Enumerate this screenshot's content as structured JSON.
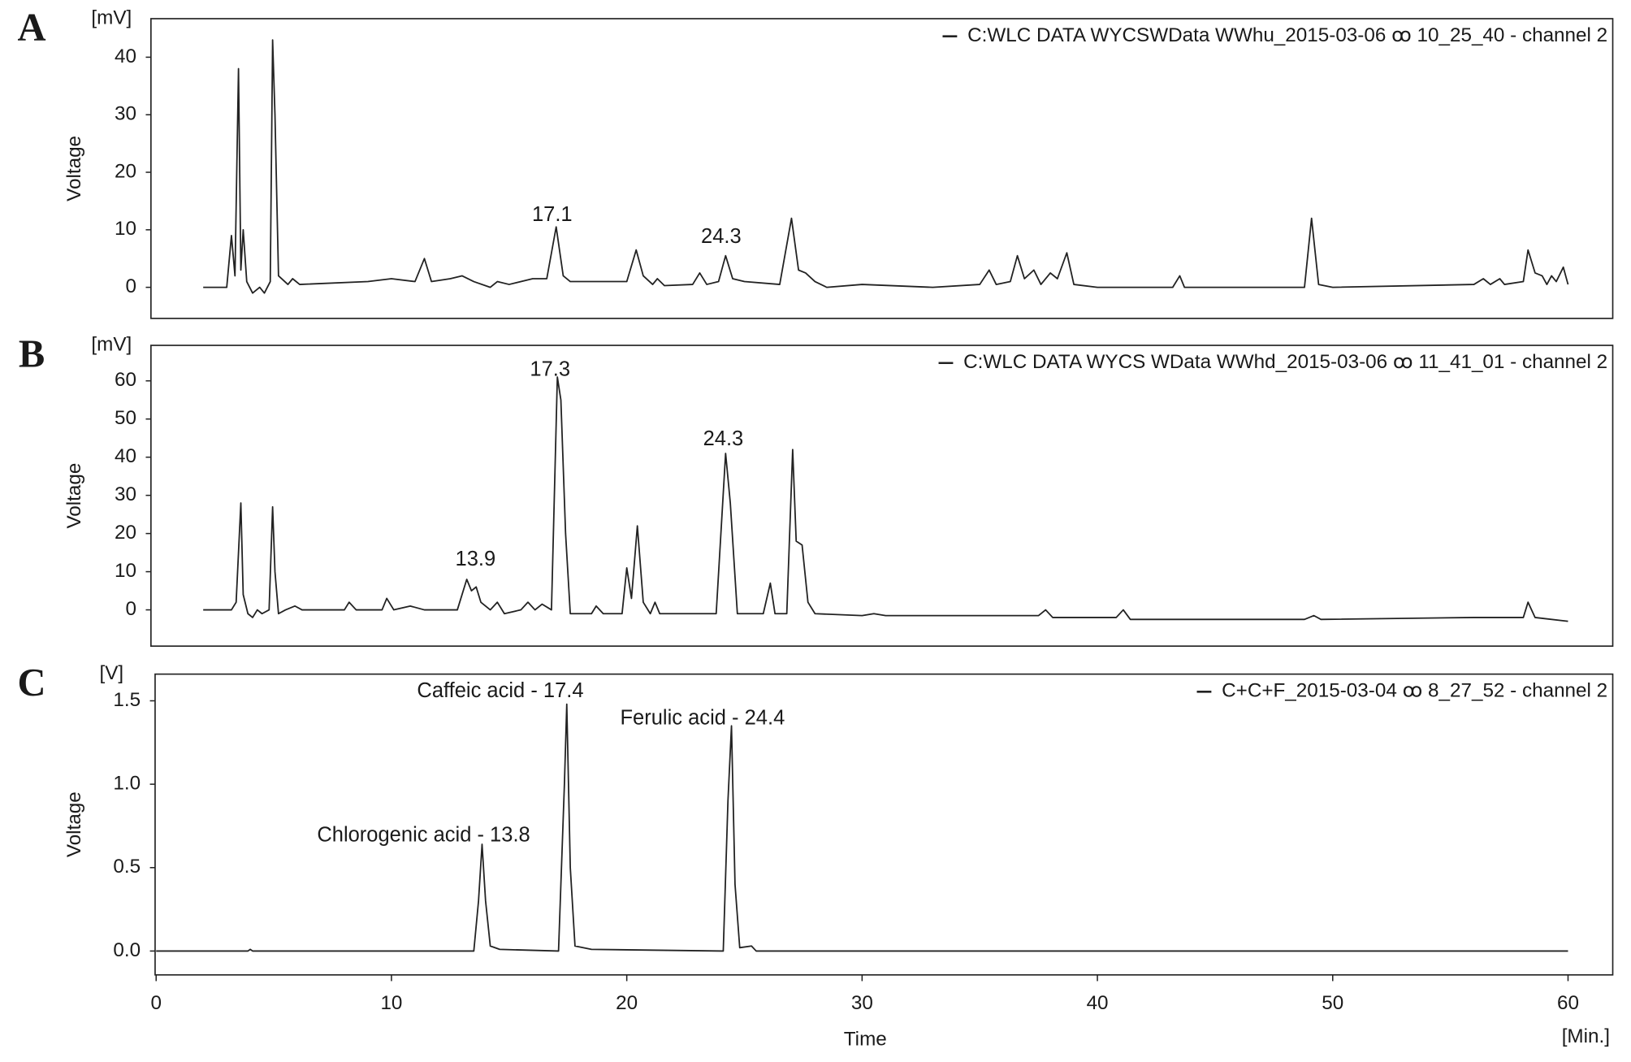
{
  "chart_data": [
    {
      "type": "line",
      "panel_label": "A",
      "y_unit": "[mV]",
      "y_label": "Voltage",
      "xlim": [
        0,
        61.9
      ],
      "ylim": [
        -5.4,
        46.7
      ],
      "yticks": [
        0,
        10,
        20,
        30,
        40
      ],
      "annotations": [
        "17.1",
        "24.3"
      ],
      "x": [
        2.0,
        3.0,
        3.2,
        3.35,
        3.5,
        3.6,
        3.7,
        3.85,
        4.1,
        4.4,
        4.6,
        4.85,
        4.95,
        5.05,
        5.2,
        5.6,
        5.8,
        6.1,
        9,
        10,
        11,
        11.4,
        11.7,
        12.5,
        13,
        13.5,
        14.2,
        14.5,
        15,
        16,
        16.6,
        17.0,
        17.3,
        17.6,
        20,
        20.4,
        20.7,
        21.1,
        21.3,
        21.6,
        22.8,
        23.1,
        23.4,
        23.9,
        24.2,
        24.5,
        25,
        26.5,
        27.0,
        27.3,
        27.6,
        28,
        28.5,
        30,
        33,
        35,
        35.4,
        35.7,
        36.3,
        36.6,
        36.9,
        37.3,
        37.6,
        38,
        38.3,
        38.7,
        39,
        40,
        42,
        43.2,
        43.5,
        43.7,
        46,
        48.8,
        49.1,
        49.4,
        50,
        56,
        56.4,
        56.7,
        57.1,
        57.3,
        58.1,
        58.3,
        58.6,
        58.9,
        59.1,
        59.3,
        59.5,
        59.8,
        60
      ],
      "series": [
        {
          "name": "C:WLC DATA WYCSWData WWhu_2015-03-06 ꝏ 10_25_40 - channel 2",
          "color": "#222222",
          "values": [
            0,
            0,
            9,
            2,
            38,
            3,
            10,
            1,
            -1,
            0,
            -1,
            1,
            43,
            30,
            2,
            0.5,
            1.5,
            0.5,
            1,
            1.5,
            1,
            5,
            1,
            1.5,
            2,
            1,
            0,
            1,
            0.5,
            1.5,
            1.5,
            10.5,
            2,
            1,
            1,
            6.5,
            2,
            0.5,
            1.5,
            0.3,
            0.5,
            2.5,
            0.5,
            1,
            5.5,
            1.5,
            1,
            0.5,
            12,
            3,
            2.5,
            1,
            0,
            0.5,
            0,
            0.5,
            3,
            0.5,
            1,
            5.5,
            1.5,
            3,
            0.5,
            2.5,
            1.5,
            6,
            0.5,
            0,
            0,
            0,
            2,
            0,
            0,
            0,
            12,
            0.5,
            0,
            0.5,
            1.5,
            0.5,
            1.5,
            0.5,
            1,
            6.5,
            2.5,
            2,
            0.5,
            2,
            1,
            3.5,
            0.5
          ]
        }
      ]
    },
    {
      "type": "line",
      "panel_label": "B",
      "y_unit": "[mV]",
      "y_label": "Voltage",
      "xlim": [
        0,
        61.9
      ],
      "ylim": [
        -9.5,
        69.3
      ],
      "yticks": [
        0,
        10,
        20,
        30,
        40,
        50,
        60
      ],
      "annotations": [
        "17.3",
        "24.3",
        "13.9"
      ],
      "x": [
        2,
        3.2,
        3.4,
        3.6,
        3.7,
        3.9,
        4.1,
        4.3,
        4.5,
        4.8,
        4.95,
        5.05,
        5.2,
        5.5,
        5.9,
        6.2,
        8,
        8.2,
        8.5,
        9.6,
        9.8,
        10.1,
        10.8,
        11.4,
        12.8,
        13.2,
        13.4,
        13.6,
        13.8,
        14.2,
        14.5,
        14.8,
        15.5,
        15.8,
        16.1,
        16.4,
        16.8,
        17.05,
        17.2,
        17.4,
        17.6,
        18.5,
        18.7,
        19,
        19.8,
        20.0,
        20.2,
        20.45,
        20.7,
        21,
        21.2,
        21.4,
        23.8,
        24.2,
        24.4,
        24.7,
        25.8,
        26.1,
        26.3,
        26.8,
        27.05,
        27.2,
        27.45,
        27.7,
        28,
        30,
        30.5,
        31,
        37.5,
        37.8,
        38.1,
        40.8,
        41.1,
        41.4,
        48.8,
        49.2,
        49.5,
        56,
        58.1,
        58.3,
        58.6,
        60
      ],
      "series": [
        {
          "name": "C:WLC DATA WYCS WData WWhd_2015-03-06 ꝏ 11_41_01 - channel 2",
          "color": "#222222",
          "values": [
            0,
            0,
            2,
            28,
            4,
            -1,
            -2,
            0,
            -1,
            0,
            27,
            10,
            -1,
            0,
            1,
            0,
            0,
            2,
            0,
            0,
            3,
            0,
            1,
            0,
            0,
            8,
            5,
            6,
            2,
            0,
            2,
            -1,
            0,
            2,
            0,
            1.5,
            0,
            61,
            55,
            20,
            -1,
            -1,
            1,
            -1,
            -1,
            11,
            3,
            22,
            2,
            -1,
            2,
            -1,
            -1,
            41,
            28,
            -1,
            -1,
            7,
            -1,
            -1,
            42,
            18,
            17,
            2,
            -1,
            -1.5,
            -1,
            -1.5,
            -1.5,
            0,
            -2,
            -2,
            0,
            -2.5,
            -2.5,
            -1.5,
            -2.5,
            -2,
            -2,
            2,
            -2,
            -3
          ]
        }
      ]
    },
    {
      "type": "line",
      "panel_label": "C",
      "y_unit": "[V]",
      "y_label": "Voltage",
      "x_label": "Time",
      "x_unit": "[Min.]",
      "xlim": [
        0,
        61.9
      ],
      "ylim": [
        -0.143,
        1.66
      ],
      "yticks": [
        {
          "value": 0,
          "label": "0.0"
        },
        {
          "value": 0.5,
          "label": "0.5"
        },
        {
          "value": 1,
          "label": "1.0"
        },
        {
          "value": 1.5,
          "label": "1.5"
        }
      ],
      "xticks": [
        0,
        10,
        20,
        30,
        40,
        50,
        60
      ],
      "annotations": [
        "Caffeic acid - 17.4",
        "Ferulic acid - 24.4",
        "Chlorogenic acid - 13.8"
      ],
      "x": [
        0,
        3.9,
        4.0,
        4.1,
        13.5,
        13.7,
        13.85,
        14.0,
        14.2,
        14.6,
        17.1,
        17.35,
        17.45,
        17.6,
        17.8,
        18.5,
        24.1,
        24.3,
        24.45,
        24.6,
        24.8,
        25.3,
        25.5,
        60
      ],
      "series": [
        {
          "name": "C+C+F_2015-03-04 ꝏ 8_27_52 - channel 2",
          "color": "#222222",
          "values": [
            0,
            0,
            0.01,
            0,
            0,
            0.3,
            0.64,
            0.3,
            0.03,
            0.01,
            0,
            1.0,
            1.48,
            0.5,
            0.03,
            0.01,
            0,
            0.9,
            1.35,
            0.4,
            0.02,
            0.03,
            0,
            0
          ]
        }
      ]
    }
  ]
}
